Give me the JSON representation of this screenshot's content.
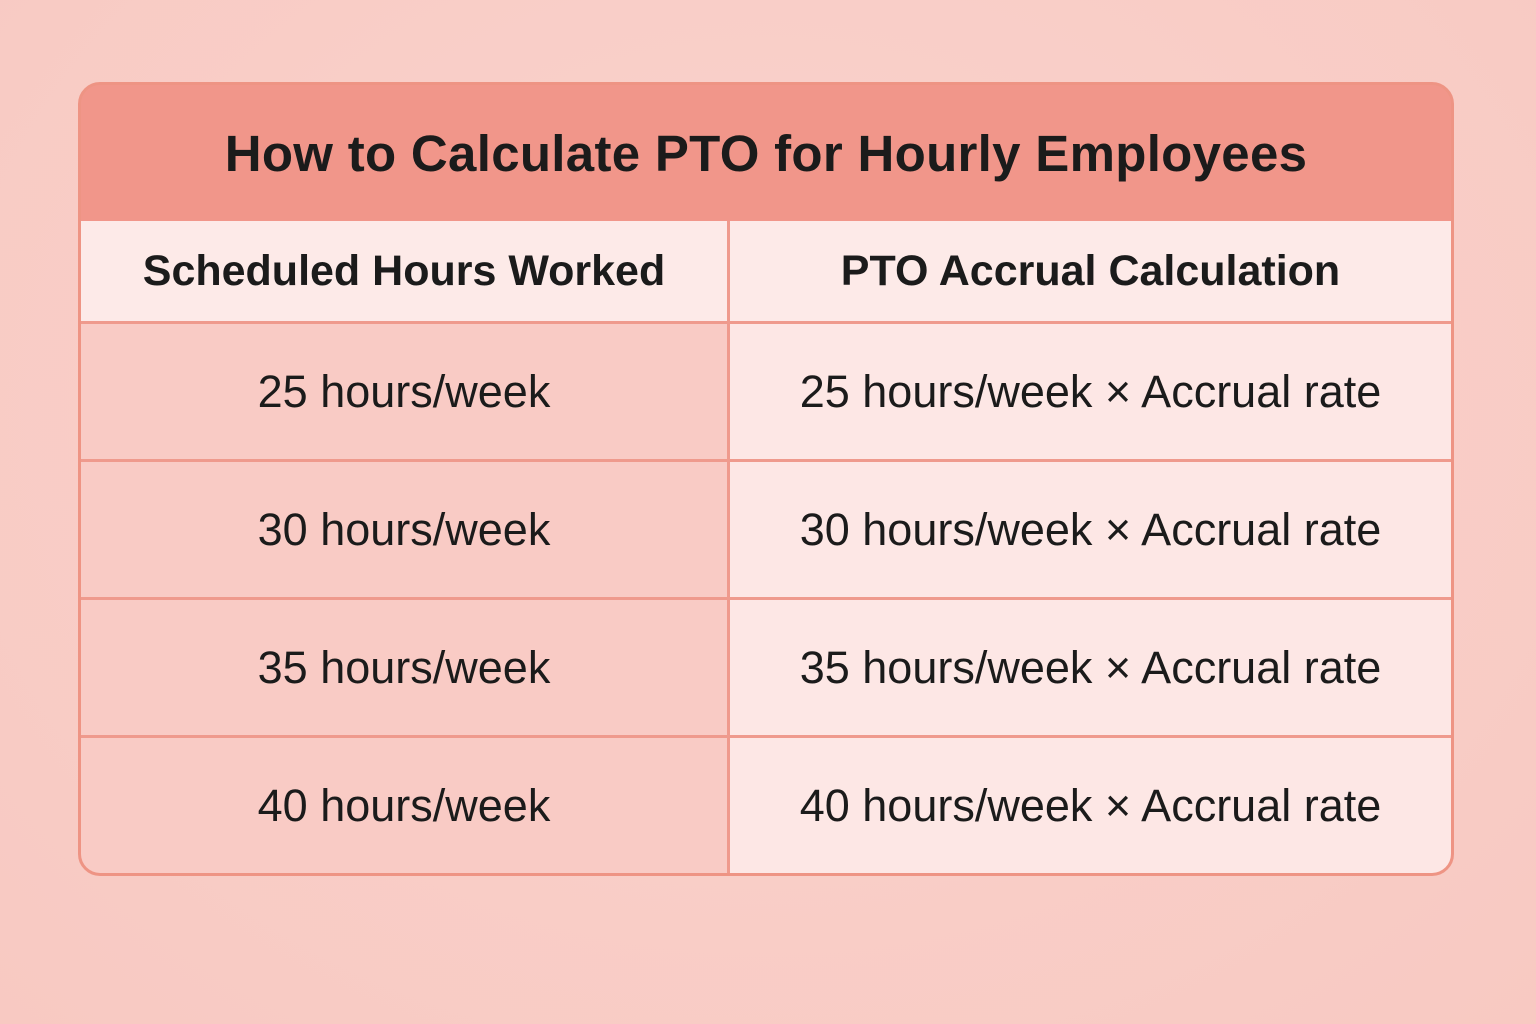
{
  "title": "How to Calculate PTO for Hourly Employees",
  "table": {
    "header": [
      "Scheduled Hours Worked",
      "PTO Accrual Calculation"
    ],
    "rows": [
      [
        "25 hours/week",
        "25 hours/week × Accrual rate"
      ],
      [
        "30 hours/week",
        "30 hours/week × Accrual rate"
      ],
      [
        "35 hours/week",
        "35 hours/week × Accrual rate"
      ],
      [
        "40 hours/week",
        "40 hours/week × Accrual rate"
      ]
    ]
  }
}
